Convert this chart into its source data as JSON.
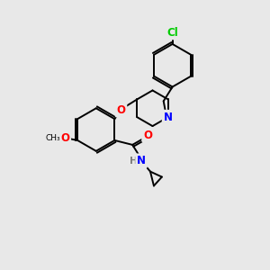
{
  "bg_color": "#e8e8e8",
  "bond_color": "#000000",
  "atom_colors": {
    "N": "#0000ff",
    "O": "#ff0000",
    "Cl": "#00cc00",
    "C": "#000000",
    "H": "#7a7a7a"
  },
  "figsize": [
    3.0,
    3.0
  ],
  "dpi": 100,
  "lw": 1.4,
  "fs": 8.5,
  "fs_small": 7.5
}
